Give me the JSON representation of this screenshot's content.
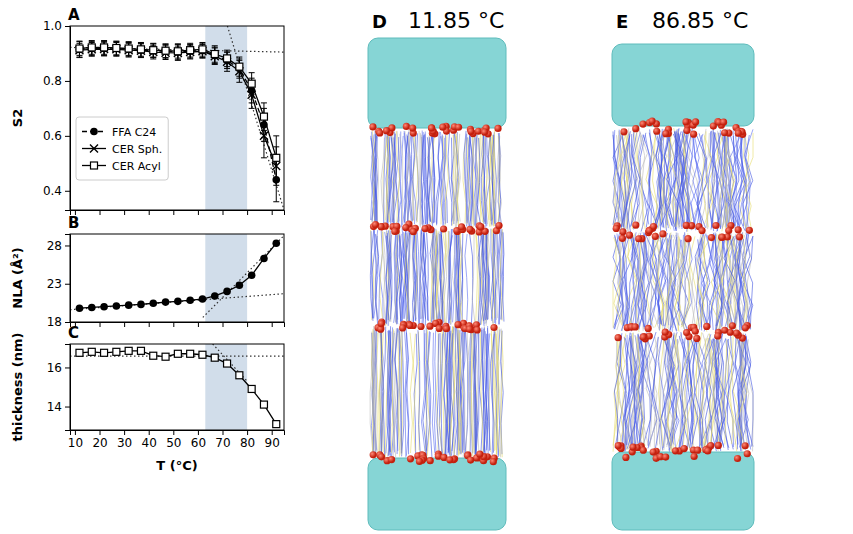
{
  "chart_data": [
    {
      "type": "line",
      "title": "A",
      "y_label": "S2",
      "x": [
        11.85,
        16.85,
        21.85,
        26.85,
        31.85,
        36.85,
        41.85,
        46.85,
        51.85,
        56.85,
        61.85,
        66.85,
        71.85,
        76.85,
        81.85,
        86.85,
        91.85
      ],
      "xlim": [
        8,
        95
      ],
      "xticks": [
        10,
        20,
        30,
        40,
        50,
        60,
        70,
        80,
        90
      ],
      "ylim": [
        0.33,
        1.0
      ],
      "yticks": [
        0.4,
        0.6,
        0.8,
        {
          "value": 1.0,
          "label": "1.0"
        }
      ],
      "tick_labels": "y",
      "grid": false,
      "legend": "lower left",
      "band": [
        63,
        80
      ],
      "fits": [
        {
          "x": [
            8,
            95
          ],
          "values": [
            0.922,
            0.905
          ]
        },
        {
          "x": [
            72,
            95
          ],
          "values": [
            1.0,
            0.33
          ]
        }
      ],
      "series": [
        {
          "name": "FFA C24",
          "color": "#000000",
          "marker": "circle",
          "line_style": "dashed",
          "values": [
            0.915,
            0.918,
            0.918,
            0.918,
            0.915,
            0.912,
            0.91,
            0.908,
            0.905,
            0.908,
            0.91,
            0.893,
            0.875,
            0.845,
            0.765,
            0.64,
            0.44
          ],
          "errors": [
            0.03,
            0.025,
            0.025,
            0.025,
            0.025,
            0.025,
            0.025,
            0.025,
            0.03,
            0.025,
            0.025,
            0.03,
            0.03,
            0.035,
            0.045,
            0.06,
            0.08
          ]
        },
        {
          "name": "CER Sph.",
          "color": "#000000",
          "marker": "x",
          "line_style": "solid",
          "values": [
            0.912,
            0.915,
            0.916,
            0.915,
            0.912,
            0.91,
            0.905,
            0.903,
            0.902,
            0.905,
            0.908,
            0.89,
            0.87,
            0.835,
            0.75,
            0.6,
            0.49
          ],
          "errors": [
            0.025,
            0.025,
            0.025,
            0.025,
            0.025,
            0.025,
            0.025,
            0.025,
            0.025,
            0.025,
            0.025,
            0.03,
            0.035,
            0.04,
            0.05,
            0.08,
            0.07
          ]
        },
        {
          "name": "CER Acyl",
          "color": "#000000",
          "marker": "square",
          "line_style": "solid",
          "values": [
            0.918,
            0.922,
            0.922,
            0.92,
            0.918,
            0.915,
            0.912,
            0.91,
            0.908,
            0.912,
            0.915,
            0.898,
            0.882,
            0.852,
            0.79,
            0.67,
            0.52
          ],
          "errors": [
            0.025,
            0.025,
            0.025,
            0.025,
            0.025,
            0.025,
            0.025,
            0.025,
            0.025,
            0.025,
            0.025,
            0.03,
            0.03,
            0.035,
            0.04,
            0.05,
            0.08
          ]
        }
      ]
    },
    {
      "type": "line",
      "title": "B",
      "y_label": "NLA (Å²)",
      "x": [
        11.85,
        16.85,
        21.85,
        26.85,
        31.85,
        36.85,
        41.85,
        46.85,
        51.85,
        56.85,
        61.85,
        66.85,
        71.85,
        76.85,
        81.85,
        86.85,
        91.85
      ],
      "xlim": [
        8,
        95
      ],
      "xticks": [
        10,
        20,
        30,
        40,
        50,
        60,
        70,
        80,
        90
      ],
      "ylim": [
        18,
        29.5
      ],
      "yticks": [
        18,
        23,
        28
      ],
      "tick_labels": "y",
      "grid": false,
      "band": [
        63,
        80
      ],
      "fits": [
        {
          "x": [
            8,
            95
          ],
          "values": [
            19.6,
            21.7
          ]
        },
        {
          "x": [
            62,
            95
          ],
          "values": [
            18.6,
            29.3
          ]
        }
      ],
      "series": [
        {
          "name": "NLA",
          "color": "#000000",
          "marker": "circle",
          "line_style": "solid",
          "values": [
            19.8,
            19.9,
            20.0,
            20.1,
            20.2,
            20.3,
            20.45,
            20.6,
            20.7,
            20.85,
            21.0,
            21.4,
            22.0,
            22.8,
            24.1,
            26.3,
            28.3
          ]
        }
      ]
    },
    {
      "type": "line",
      "title": "C",
      "y_label": "thickness (nm)",
      "x_label": "T (°C)",
      "x": [
        11.85,
        16.85,
        21.85,
        26.85,
        31.85,
        36.85,
        41.85,
        46.85,
        51.85,
        56.85,
        61.85,
        66.85,
        71.85,
        76.85,
        81.85,
        86.85,
        91.85
      ],
      "xlim": [
        8,
        95
      ],
      "xticks": [
        10,
        20,
        30,
        40,
        50,
        60,
        70,
        80,
        90
      ],
      "ylim": [
        12.8,
        17.2
      ],
      "yticks": [
        14,
        16
      ],
      "grid": false,
      "band": [
        63,
        80
      ],
      "fits": [
        {
          "x": [
            8,
            95
          ],
          "values": [
            16.58,
            16.58
          ]
        },
        {
          "x": [
            66,
            80
          ],
          "values": [
            17.2,
            15.3
          ]
        }
      ],
      "series": [
        {
          "name": "thickness",
          "color": "#000000",
          "marker": "square",
          "line_style": "solid",
          "values": [
            16.75,
            16.8,
            16.75,
            16.8,
            16.85,
            16.85,
            16.6,
            16.55,
            16.7,
            16.7,
            16.65,
            16.5,
            16.2,
            15.6,
            14.9,
            14.1,
            13.1
          ]
        }
      ]
    }
  ],
  "images": [
    {
      "letter": "D",
      "title": "11.85 °C"
    },
    {
      "letter": "E",
      "title": "86.85 °C"
    }
  ]
}
